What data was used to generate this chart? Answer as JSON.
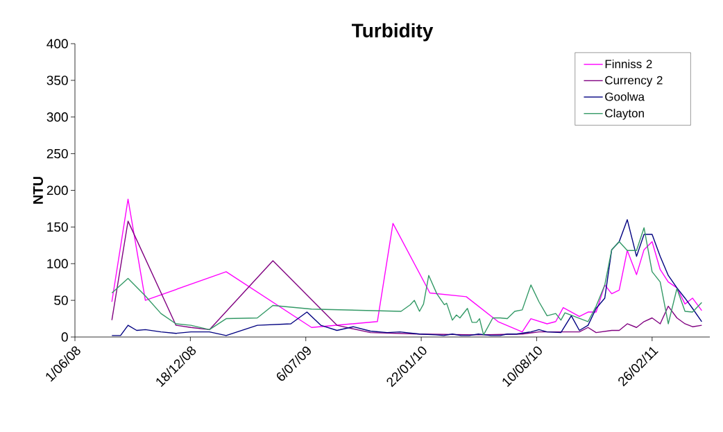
{
  "chart_data": {
    "type": "line",
    "title": "Turbidity",
    "ylabel": "NTU",
    "xlim": [
      "2008-06-01",
      "2011-06-06"
    ],
    "ylim": [
      0,
      400
    ],
    "xticks": [
      {
        "value": "2008-06-01",
        "label": "1/06/08"
      },
      {
        "value": "2008-12-18",
        "label": "18/12/08"
      },
      {
        "value": "2009-07-06",
        "label": "6/07/09"
      },
      {
        "value": "2010-01-22",
        "label": "22/01/10"
      },
      {
        "value": "2010-08-10",
        "label": "10/08/10"
      },
      {
        "value": "2011-02-26",
        "label": "26/02/11"
      }
    ],
    "yticks": [
      0,
      50,
      100,
      150,
      200,
      250,
      300,
      350,
      400
    ],
    "grid": false,
    "legend": "top right",
    "marker": "none",
    "line_style": "solid",
    "series": [
      {
        "name": "Finniss 2",
        "color": "#ff00ff",
        "x": [
          "2008-08-04",
          "2008-09-01",
          "2008-10-01",
          "2009-02-18",
          "2009-07-16",
          "2009-11-07",
          "2009-12-04",
          "2010-02-06",
          "2010-04-10",
          "2010-06-04",
          "2010-07-16",
          "2010-07-31",
          "2010-08-28",
          "2010-09-12",
          "2010-09-25",
          "2010-10-23",
          "2010-11-07",
          "2010-11-21",
          "2010-12-06",
          "2010-12-18",
          "2010-12-31",
          "2011-01-14",
          "2011-01-30",
          "2011-02-12",
          "2011-02-26",
          "2011-03-12",
          "2011-03-26",
          "2011-04-10",
          "2011-04-24",
          "2011-05-07",
          "2011-05-23"
        ],
        "values": [
          48,
          188,
          50,
          89,
          13,
          21,
          155,
          60,
          55,
          21,
          7,
          25,
          18,
          21,
          40,
          28,
          34,
          34,
          71,
          59,
          64,
          118,
          85,
          119,
          130,
          92,
          75,
          67,
          45,
          53,
          36
        ]
      },
      {
        "name": "Currency 2",
        "color": "#800080",
        "x": [
          "2008-08-04",
          "2008-09-01",
          "2008-11-23",
          "2008-12-19",
          "2009-01-20",
          "2009-05-10",
          "2009-08-29",
          "2009-10-26",
          "2010-01-19",
          "2010-05-01",
          "2010-07-16",
          "2010-08-14",
          "2010-10-23",
          "2010-11-07",
          "2010-11-21",
          "2010-12-18",
          "2010-12-31",
          "2011-01-14",
          "2011-01-30",
          "2011-02-12",
          "2011-02-26",
          "2011-03-12",
          "2011-03-26",
          "2011-04-10",
          "2011-04-24",
          "2011-05-07",
          "2011-05-23"
        ],
        "values": [
          23,
          158,
          16,
          13,
          10,
          104,
          16,
          6,
          4,
          3,
          4,
          7,
          7,
          13,
          6,
          9,
          9,
          18,
          13,
          21,
          26,
          18,
          42,
          26,
          18,
          14,
          16
        ]
      },
      {
        "name": "Goolwa",
        "color": "#000080",
        "x": [
          "2008-08-04",
          "2008-08-19",
          "2008-09-01",
          "2008-09-16",
          "2008-10-01",
          "2008-10-28",
          "2008-11-23",
          "2008-12-19",
          "2009-01-20",
          "2009-02-18",
          "2009-04-13",
          "2009-06-10",
          "2009-07-08",
          "2009-08-01",
          "2009-08-29",
          "2009-09-26",
          "2009-10-26",
          "2009-11-24",
          "2009-12-16",
          "2010-01-19",
          "2010-02-16",
          "2010-03-02",
          "2010-03-17",
          "2010-04-01",
          "2010-04-15",
          "2010-05-01",
          "2010-05-23",
          "2010-06-08",
          "2010-06-20",
          "2010-07-06",
          "2010-07-31",
          "2010-08-14",
          "2010-08-28",
          "2010-09-21",
          "2010-10-09",
          "2010-10-23",
          "2010-11-07",
          "2010-11-21",
          "2010-12-06",
          "2010-12-18",
          "2010-12-31",
          "2011-01-14",
          "2011-01-30",
          "2011-02-12",
          "2011-02-26",
          "2011-03-12",
          "2011-03-26",
          "2011-04-10",
          "2011-04-24",
          "2011-05-07",
          "2011-05-23"
        ],
        "values": [
          2,
          2,
          16,
          9,
          10,
          7,
          5,
          7,
          7,
          2,
          16,
          18,
          34,
          16,
          9,
          14,
          8,
          6,
          7,
          4,
          3,
          2,
          4,
          2,
          2,
          4,
          2,
          2,
          4,
          4,
          7,
          10,
          7,
          6,
          29,
          9,
          16,
          39,
          53,
          119,
          130,
          160,
          110,
          140,
          140,
          110,
          84,
          67,
          53,
          39,
          21
        ]
      },
      {
        "name": "Clayton",
        "color": "#339966",
        "x": [
          "2008-08-04",
          "2008-09-01",
          "2008-10-01",
          "2008-10-28",
          "2008-11-23",
          "2008-12-19",
          "2009-01-20",
          "2009-02-18",
          "2009-04-13",
          "2009-05-10",
          "2009-07-16",
          "2009-12-18",
          "2010-01-03",
          "2010-01-10",
          "2010-01-19",
          "2010-01-26",
          "2010-02-04",
          "2010-02-18",
          "2010-03-03",
          "2010-03-07",
          "2010-03-17",
          "2010-03-24",
          "2010-03-30",
          "2010-04-12",
          "2010-04-20",
          "2010-04-28",
          "2010-05-03",
          "2010-05-10",
          "2010-05-26",
          "2010-06-08",
          "2010-06-20",
          "2010-07-03",
          "2010-07-16",
          "2010-07-31",
          "2010-08-14",
          "2010-08-28",
          "2010-09-12",
          "2010-09-21",
          "2010-09-28",
          "2010-11-07",
          "2010-11-21",
          "2010-12-06",
          "2010-12-18",
          "2010-12-31",
          "2011-01-14",
          "2011-01-30",
          "2011-02-12",
          "2011-02-26",
          "2011-03-12",
          "2011-03-26",
          "2011-04-10",
          "2011-04-24",
          "2011-05-07",
          "2011-05-23"
        ],
        "values": [
          60,
          80,
          56,
          32,
          18,
          16,
          10,
          25,
          26,
          43,
          38,
          35,
          44,
          50,
          35,
          45,
          84,
          59,
          44,
          46,
          23,
          30,
          26,
          39,
          20,
          20,
          25,
          3,
          26,
          26,
          25,
          35,
          37,
          71,
          48,
          29,
          32,
          23,
          33,
          21,
          42,
          71,
          119,
          130,
          118,
          118,
          149,
          89,
          75,
          18,
          66,
          35,
          34,
          47
        ]
      }
    ]
  }
}
